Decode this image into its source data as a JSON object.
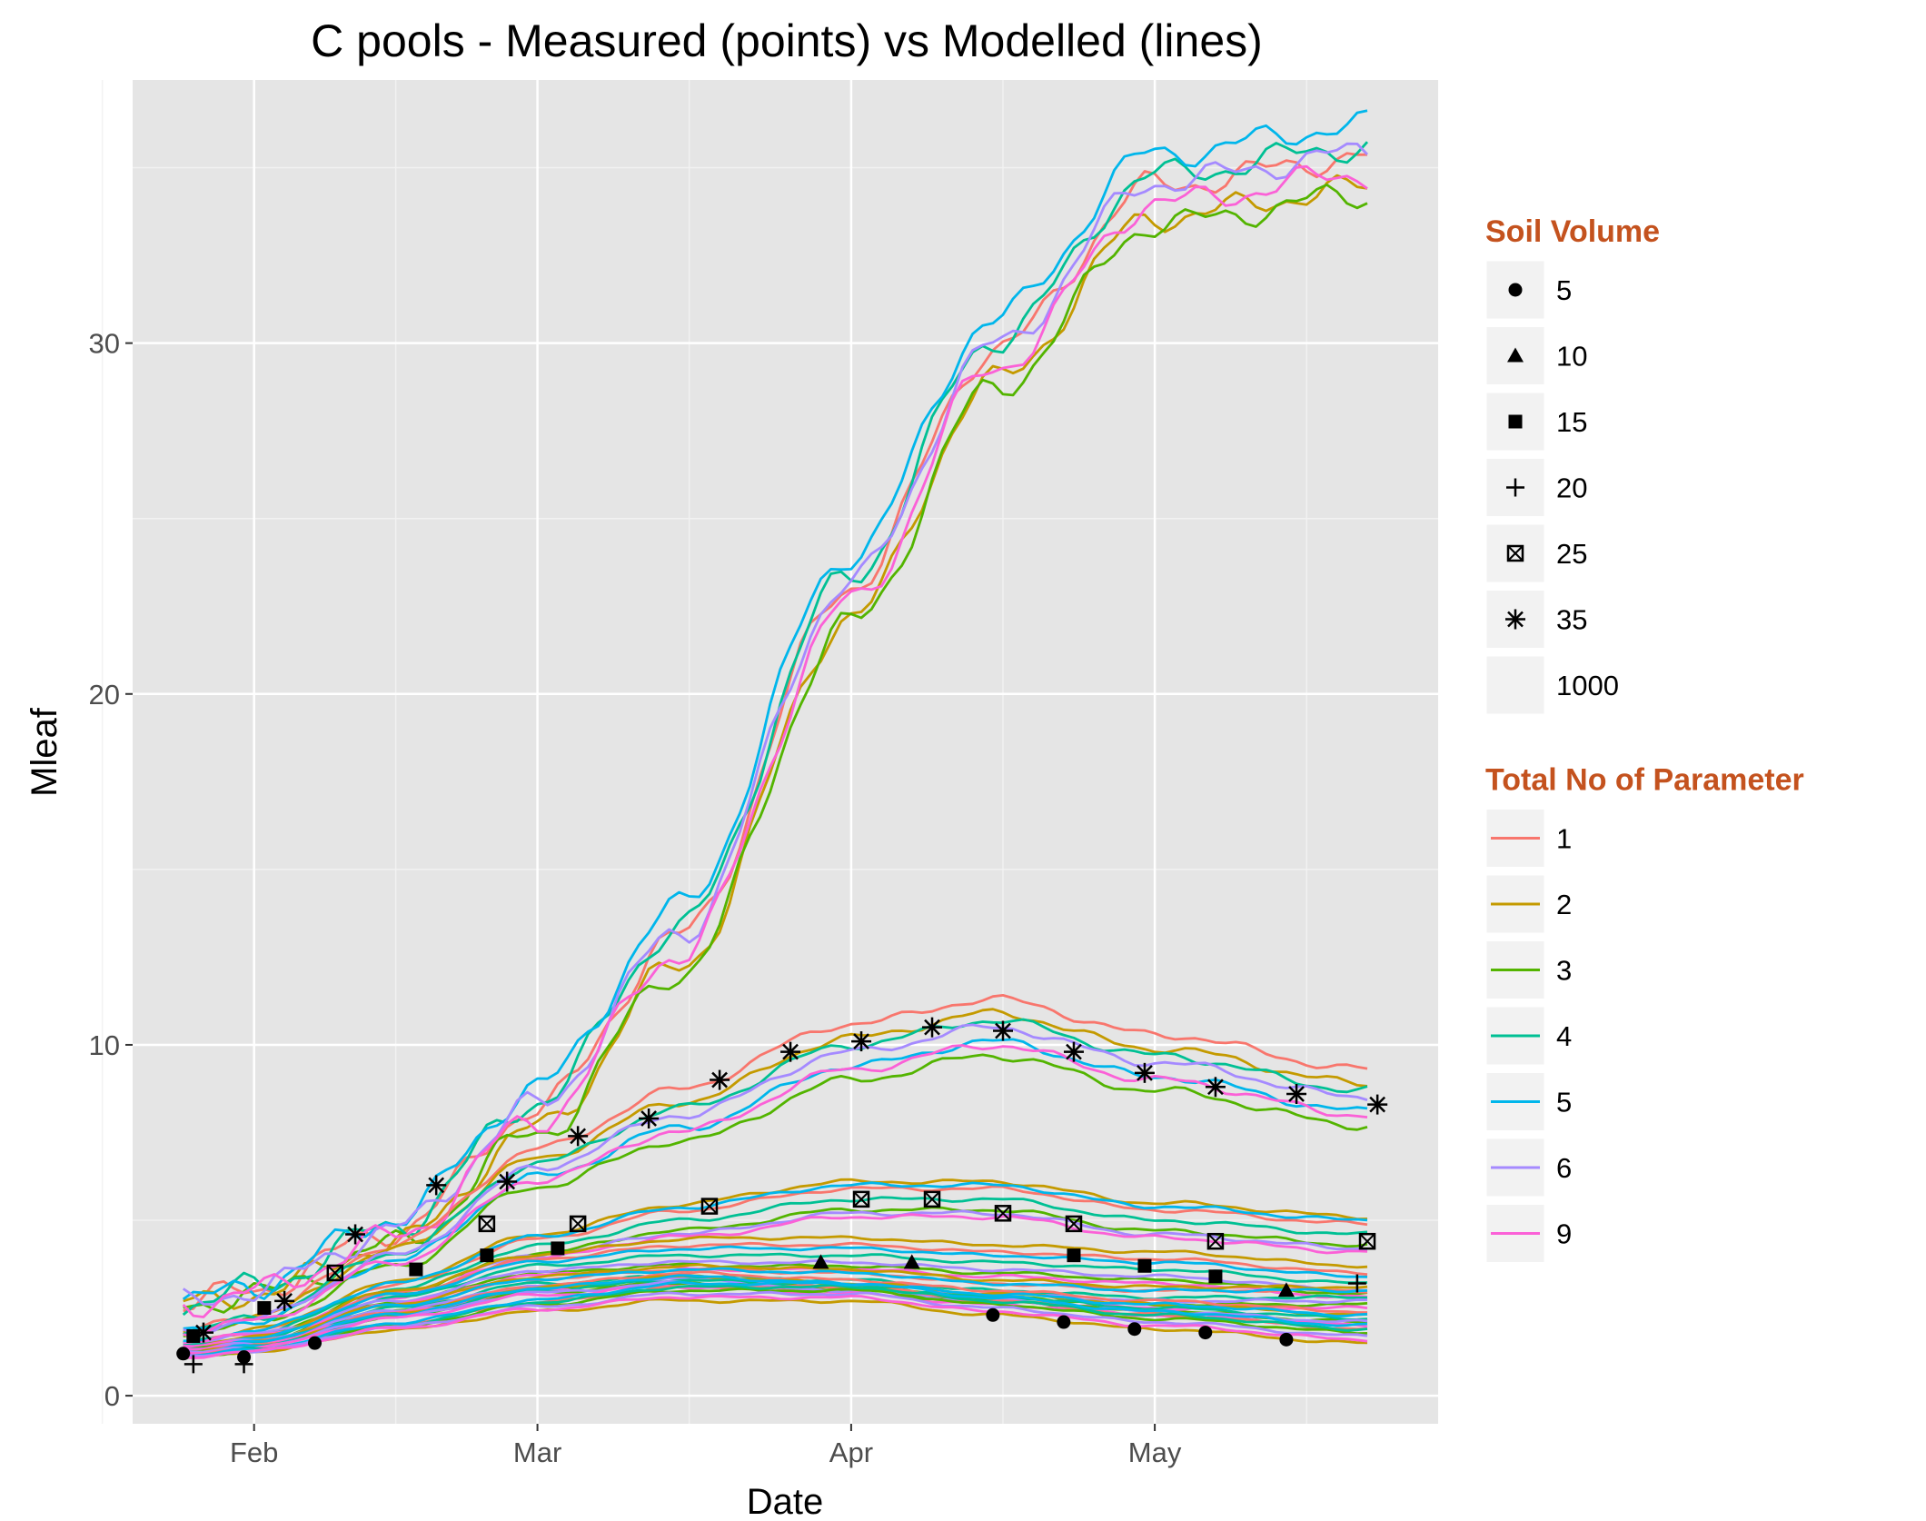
{
  "chart_data": {
    "type": "line",
    "title": "C pools - Measured (points) vs Modelled (lines)",
    "xlabel": "Date",
    "ylabel": "Mleaf",
    "x_start": "2013-01-25",
    "x_end": "2013-05-22",
    "xlim": [
      "2013-01-20",
      "2013-05-29"
    ],
    "ylim": [
      -0.8,
      37.5
    ],
    "x_ticks": [
      {
        "label": "Feb",
        "date": "2013-02-01"
      },
      {
        "label": "Mar",
        "date": "2013-03-01"
      },
      {
        "label": "Apr",
        "date": "2013-04-01"
      },
      {
        "label": "May",
        "date": "2013-05-01"
      }
    ],
    "x_minor_ticks": [
      "2013-01-17",
      "2013-02-15",
      "2013-03-16",
      "2013-04-16",
      "2013-05-16"
    ],
    "y_ticks": [
      0,
      10,
      20,
      30
    ],
    "grid": true,
    "background": "#e5e5e5",
    "legend_placement": "right",
    "legends": [
      {
        "title": "Soil Volume",
        "title_color": "#c4521e",
        "kind": "shape",
        "items": [
          {
            "label": "5",
            "shape": "circle"
          },
          {
            "label": "10",
            "shape": "triangle"
          },
          {
            "label": "15",
            "shape": "square"
          },
          {
            "label": "20",
            "shape": "plus"
          },
          {
            "label": "25",
            "shape": "boxed-x"
          },
          {
            "label": "35",
            "shape": "asterisk"
          },
          {
            "label": "1000",
            "shape": "none"
          }
        ]
      },
      {
        "title": "Total No of Parameter",
        "title_color": "#c4521e",
        "kind": "line",
        "items": [
          {
            "label": "1",
            "color": "#F8766D"
          },
          {
            "label": "2",
            "color": "#C49A00"
          },
          {
            "label": "3",
            "color": "#53B400"
          },
          {
            "label": "4",
            "color": "#00C094"
          },
          {
            "label": "5",
            "color": "#00B6EB"
          },
          {
            "label": "6",
            "color": "#A58AFF"
          },
          {
            "label": "9",
            "color": "#FB61D7"
          }
        ]
      }
    ],
    "line_groups": [
      {
        "soil_volume": "1000",
        "anchors": [
          [
            "2013-01-25",
            2.6
          ],
          [
            "2013-02-01",
            3.0
          ],
          [
            "2013-02-15",
            4.6
          ],
          [
            "2013-03-01",
            8.0
          ],
          [
            "2013-03-15",
            12.8
          ],
          [
            "2013-04-01",
            22.8
          ],
          [
            "2013-04-15",
            29.5
          ],
          [
            "2013-05-01",
            34.2
          ],
          [
            "2013-05-22",
            35.0
          ]
        ],
        "series": [
          {
            "param": "1",
            "offset": 0.3
          },
          {
            "param": "2",
            "offset": -0.6
          },
          {
            "param": "3",
            "offset": -0.8
          },
          {
            "param": "4",
            "offset": 0.6
          },
          {
            "param": "5",
            "offset": 1.2
          },
          {
            "param": "6",
            "offset": 0.4
          },
          {
            "param": "9",
            "offset": -0.2
          }
        ]
      },
      {
        "soil_volume": "35",
        "anchors": [
          [
            "2013-01-25",
            1.8
          ],
          [
            "2013-02-01",
            2.2
          ],
          [
            "2013-02-15",
            4.0
          ],
          [
            "2013-03-01",
            6.5
          ],
          [
            "2013-03-15",
            8.0
          ],
          [
            "2013-04-01",
            9.8
          ],
          [
            "2013-04-15",
            10.5
          ],
          [
            "2013-05-01",
            9.5
          ],
          [
            "2013-05-22",
            8.5
          ]
        ],
        "series": [
          {
            "param": "1",
            "offset": 0.8
          },
          {
            "param": "2",
            "offset": 0.4
          },
          {
            "param": "3",
            "offset": -0.8
          },
          {
            "param": "4",
            "offset": 0.2
          },
          {
            "param": "5",
            "offset": -0.4
          },
          {
            "param": "6",
            "offset": 0.0
          },
          {
            "param": "9",
            "offset": -0.5
          }
        ]
      },
      {
        "soil_volume": "25",
        "anchors": [
          [
            "2013-01-25",
            1.5
          ],
          [
            "2013-02-01",
            1.8
          ],
          [
            "2013-02-15",
            3.0
          ],
          [
            "2013-03-01",
            4.2
          ],
          [
            "2013-03-15",
            4.9
          ],
          [
            "2013-04-01",
            5.5
          ],
          [
            "2013-04-15",
            5.5
          ],
          [
            "2013-05-01",
            4.9
          ],
          [
            "2013-05-22",
            4.5
          ]
        ],
        "series": [
          {
            "param": "1",
            "offset": 0.4
          },
          {
            "param": "2",
            "offset": 0.6
          },
          {
            "param": "3",
            "offset": -0.2
          },
          {
            "param": "4",
            "offset": 0.1
          },
          {
            "param": "5",
            "offset": 0.5
          },
          {
            "param": "6",
            "offset": -0.3
          },
          {
            "param": "9",
            "offset": -0.4
          }
        ]
      },
      {
        "soil_volume": "15",
        "anchors": [
          [
            "2013-01-25",
            1.4
          ],
          [
            "2013-02-01",
            1.6
          ],
          [
            "2013-02-15",
            2.8
          ],
          [
            "2013-03-01",
            3.7
          ],
          [
            "2013-03-15",
            4.0
          ],
          [
            "2013-04-01",
            4.0
          ],
          [
            "2013-04-15",
            3.8
          ],
          [
            "2013-05-01",
            3.6
          ],
          [
            "2013-05-22",
            3.2
          ]
        ],
        "series": [
          {
            "param": "1",
            "offset": 0.3
          },
          {
            "param": "2",
            "offset": 0.5
          },
          {
            "param": "3",
            "offset": -0.3
          },
          {
            "param": "4",
            "offset": 0.0
          },
          {
            "param": "5",
            "offset": 0.2
          },
          {
            "param": "6",
            "offset": -0.2
          },
          {
            "param": "9",
            "offset": -0.4
          }
        ]
      },
      {
        "soil_volume": "20",
        "anchors": [
          [
            "2013-01-25",
            1.3
          ],
          [
            "2013-02-01",
            1.5
          ],
          [
            "2013-02-15",
            2.5
          ],
          [
            "2013-03-01",
            3.2
          ],
          [
            "2013-03-15",
            3.4
          ],
          [
            "2013-04-01",
            3.3
          ],
          [
            "2013-04-15",
            3.0
          ],
          [
            "2013-05-01",
            2.8
          ],
          [
            "2013-05-22",
            2.8
          ]
        ],
        "series": [
          {
            "param": "1",
            "offset": 0.2
          },
          {
            "param": "2",
            "offset": 0.3
          },
          {
            "param": "3",
            "offset": -0.2
          },
          {
            "param": "4",
            "offset": 0.0
          },
          {
            "param": "5",
            "offset": 0.2
          },
          {
            "param": "6",
            "offset": -0.1
          },
          {
            "param": "9",
            "offset": -0.3
          }
        ]
      },
      {
        "soil_volume": "10",
        "anchors": [
          [
            "2013-01-25",
            1.2
          ],
          [
            "2013-02-01",
            1.4
          ],
          [
            "2013-02-15",
            2.3
          ],
          [
            "2013-03-01",
            3.0
          ],
          [
            "2013-03-15",
            3.3
          ],
          [
            "2013-04-01",
            3.1
          ],
          [
            "2013-04-15",
            2.8
          ],
          [
            "2013-05-01",
            2.5
          ],
          [
            "2013-05-22",
            2.2
          ]
        ],
        "series": [
          {
            "param": "1",
            "offset": 0.2
          },
          {
            "param": "2",
            "offset": 0.1
          },
          {
            "param": "3",
            "offset": -0.1
          },
          {
            "param": "4",
            "offset": 0.0
          },
          {
            "param": "5",
            "offset": 0.1
          },
          {
            "param": "6",
            "offset": -0.1
          },
          {
            "param": "9",
            "offset": -0.2
          }
        ]
      },
      {
        "soil_volume": "5",
        "anchors": [
          [
            "2013-01-25",
            1.1
          ],
          [
            "2013-02-01",
            1.3
          ],
          [
            "2013-02-15",
            2.0
          ],
          [
            "2013-03-01",
            2.6
          ],
          [
            "2013-03-15",
            3.0
          ],
          [
            "2013-04-01",
            3.0
          ],
          [
            "2013-04-15",
            2.6
          ],
          [
            "2013-05-01",
            2.2
          ],
          [
            "2013-05-22",
            1.8
          ]
        ],
        "series": [
          {
            "param": "1",
            "offset": 0.1
          },
          {
            "param": "2",
            "offset": -0.3
          },
          {
            "param": "3",
            "offset": 0.0
          },
          {
            "param": "4",
            "offset": 0.1
          },
          {
            "param": "5",
            "offset": 0.2
          },
          {
            "param": "6",
            "offset": -0.1
          },
          {
            "param": "9",
            "offset": -0.2
          }
        ]
      }
    ],
    "points": [
      {
        "soil_volume": "5",
        "shape": "circle",
        "values": [
          [
            "2013-01-25",
            1.2
          ],
          [
            "2013-01-31",
            1.1
          ],
          [
            "2013-02-07",
            1.5
          ],
          [
            "2013-04-15",
            2.3
          ],
          [
            "2013-04-22",
            2.1
          ],
          [
            "2013-04-29",
            1.9
          ],
          [
            "2013-05-06",
            1.8
          ],
          [
            "2013-05-14",
            1.6
          ]
        ]
      },
      {
        "soil_volume": "10",
        "shape": "triangle",
        "values": [
          [
            "2013-03-29",
            3.8
          ],
          [
            "2013-04-07",
            3.8
          ],
          [
            "2013-05-14",
            3.0
          ]
        ]
      },
      {
        "soil_volume": "15",
        "shape": "square",
        "values": [
          [
            "2013-01-26",
            1.7
          ],
          [
            "2013-02-02",
            2.5
          ],
          [
            "2013-02-17",
            3.6
          ],
          [
            "2013-02-24",
            4.0
          ],
          [
            "2013-03-03",
            4.2
          ],
          [
            "2013-04-23",
            4.0
          ],
          [
            "2013-04-30",
            3.7
          ],
          [
            "2013-05-07",
            3.4
          ]
        ]
      },
      {
        "soil_volume": "20",
        "shape": "plus",
        "values": [
          [
            "2013-01-26",
            0.9
          ],
          [
            "2013-01-31",
            0.9
          ],
          [
            "2013-05-21",
            3.2
          ]
        ]
      },
      {
        "soil_volume": "25",
        "shape": "boxed-x",
        "values": [
          [
            "2013-02-09",
            3.5
          ],
          [
            "2013-02-24",
            4.9
          ],
          [
            "2013-03-05",
            4.9
          ],
          [
            "2013-03-18",
            5.4
          ],
          [
            "2013-04-02",
            5.6
          ],
          [
            "2013-04-09",
            5.6
          ],
          [
            "2013-04-16",
            5.2
          ],
          [
            "2013-04-23",
            4.9
          ],
          [
            "2013-05-07",
            4.4
          ],
          [
            "2013-05-22",
            4.4
          ]
        ]
      },
      {
        "soil_volume": "35",
        "shape": "asterisk",
        "values": [
          [
            "2013-01-27",
            1.8
          ],
          [
            "2013-02-04",
            2.7
          ],
          [
            "2013-02-11",
            4.6
          ],
          [
            "2013-02-19",
            6.0
          ],
          [
            "2013-02-26",
            6.1
          ],
          [
            "2013-03-05",
            7.4
          ],
          [
            "2013-03-12",
            7.9
          ],
          [
            "2013-03-19",
            9.0
          ],
          [
            "2013-03-26",
            9.8
          ],
          [
            "2013-04-02",
            10.1
          ],
          [
            "2013-04-09",
            10.5
          ],
          [
            "2013-04-16",
            10.4
          ],
          [
            "2013-04-23",
            9.8
          ],
          [
            "2013-04-30",
            9.2
          ],
          [
            "2013-05-07",
            8.8
          ],
          [
            "2013-05-15",
            8.6
          ],
          [
            "2013-05-23",
            8.3
          ]
        ]
      }
    ]
  }
}
